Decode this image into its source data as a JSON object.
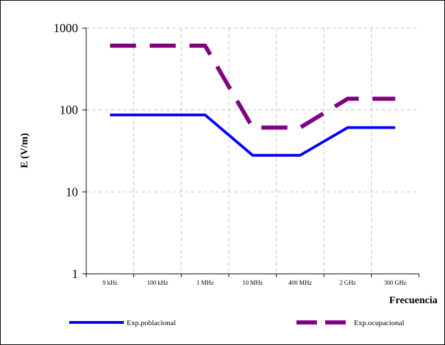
{
  "chart_data": {
    "type": "line",
    "title": "",
    "xlabel": "Frecuencia",
    "ylabel": "E (V/m)",
    "yscale": "log",
    "ylim": [
      1,
      1000
    ],
    "yticks": [
      "1",
      "10",
      "100",
      "1000"
    ],
    "categories": [
      "9 kHz",
      "100 kHz",
      "1 MHz",
      "10 MHz",
      "400 MHz",
      "2 GHz",
      "300 GHz"
    ],
    "grid": true,
    "legend_position": "bottom",
    "series": [
      {
        "name": "Exp.poblacional",
        "color": "#0000ff",
        "style": "solid",
        "values": [
          87,
          87,
          87,
          28,
          28,
          61,
          61
        ]
      },
      {
        "name": "Exp.ocupacional",
        "color": "#800080",
        "style": "dashed",
        "values": [
          610,
          610,
          610,
          61,
          61,
          137,
          137
        ]
      }
    ]
  }
}
